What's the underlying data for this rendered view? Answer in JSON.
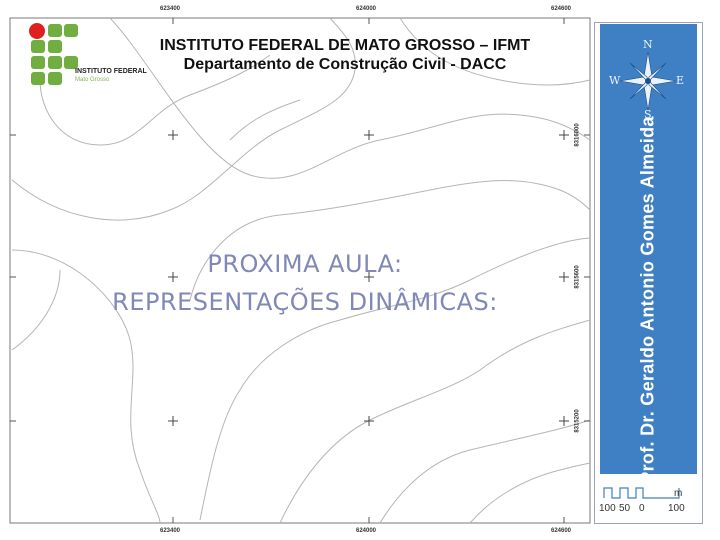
{
  "header": {
    "title": "INSTITUTO FEDERAL DE MATO GROSSO – IFMT",
    "subtitle": "Departamento de Construção Civil - DACC"
  },
  "logo": {
    "institution": "INSTITUTO FEDERAL",
    "campus": "Mato Grosso",
    "colors": {
      "red": "#e02020",
      "green": "#6fae3f"
    }
  },
  "overlay": {
    "line1": "PROXIMA AULA:",
    "line2": "REPRESENTAÇÕES DINÂMICAS:",
    "color": "#8088b5"
  },
  "map": {
    "x_ticks": [
      "623400",
      "624000",
      "624600"
    ],
    "y_ticks": [
      "8316000",
      "8315600",
      "8315200"
    ],
    "contour_color": "#b5b5b5",
    "grid_marker": "+"
  },
  "side_panel": {
    "author": "Prof. Dr. Geraldo Antonio Gomes Almeida",
    "background": "#3f80c4",
    "compass": {
      "north": "N",
      "south": "S",
      "east": "E",
      "west": "W",
      "icon": "compass-rose-icon"
    },
    "scale": {
      "labels": [
        "100",
        "50",
        "0",
        "100"
      ],
      "unit": "m"
    }
  }
}
